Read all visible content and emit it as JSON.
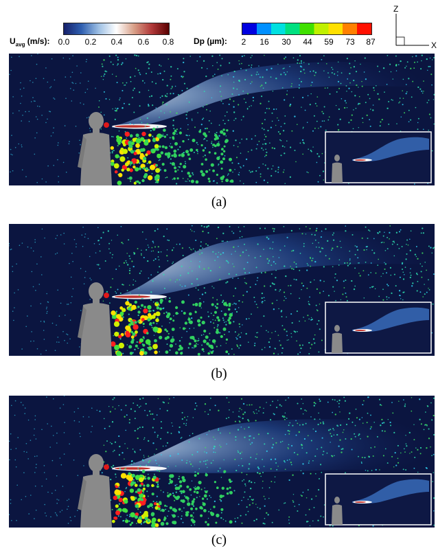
{
  "velocity_legend": {
    "label_main": "U",
    "label_sub": "avg",
    "label_unit": " (m/s):",
    "ticks": [
      "0.0",
      "0.2",
      "0.4",
      "0.6",
      "0.8"
    ],
    "colors": [
      "#16206a",
      "#2f5fb0",
      "#9ec0e4",
      "#ffffff",
      "#d8a088",
      "#b23a3a",
      "#5a0000"
    ]
  },
  "diameter_legend": {
    "label": "Dp (µm):",
    "ticks": [
      "2",
      "16",
      "30",
      "44",
      "59",
      "73",
      "87"
    ],
    "colors": [
      "#0000e0",
      "#0090ff",
      "#00e0e0",
      "#00e080",
      "#40e000",
      "#c0f000",
      "#ffe000",
      "#ff8000",
      "#ff1000"
    ]
  },
  "axes": {
    "z_label": "Z",
    "x_label": "X"
  },
  "panels": [
    {
      "caption": "(a)"
    },
    {
      "caption": "(b)"
    },
    {
      "caption": "(c)"
    }
  ]
}
